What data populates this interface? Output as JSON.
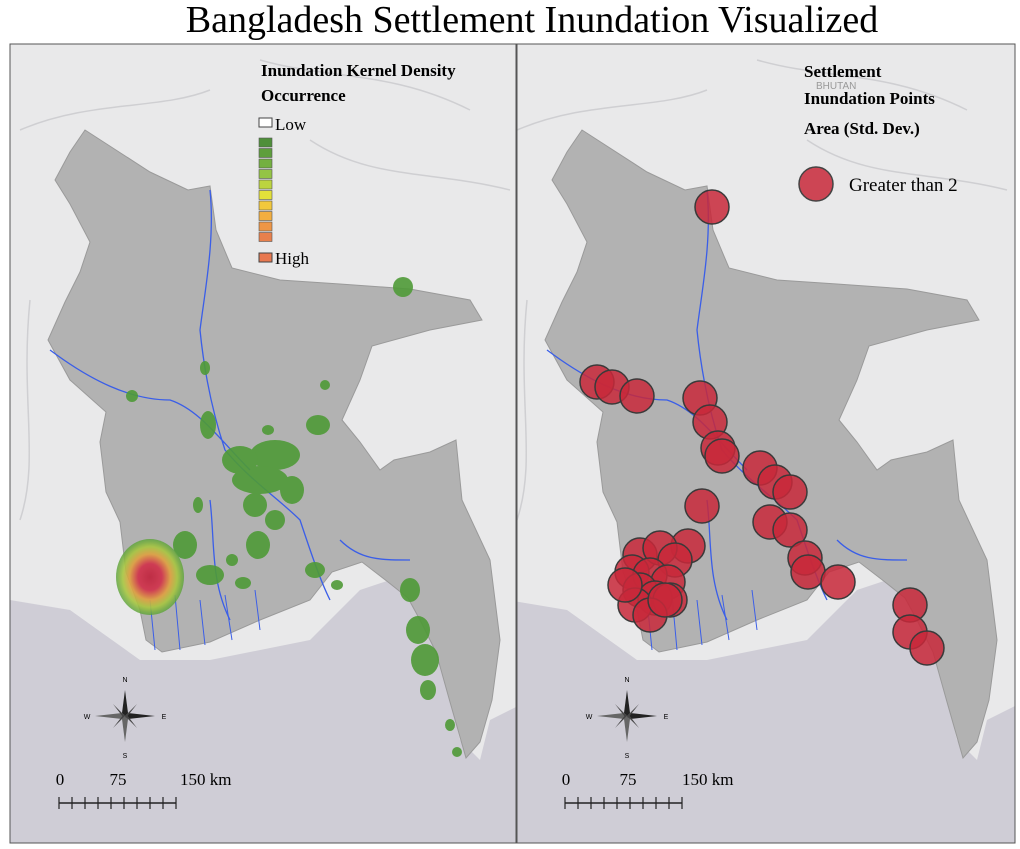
{
  "title": "Bangladesh Settlement Inundation Visualized",
  "left_map": {
    "legend": {
      "title_lines": [
        "Inundation Kernel Density",
        "Occurrence"
      ],
      "low": "Low",
      "high": "High"
    },
    "compass": {
      "n": "N",
      "s": "S",
      "e": "E",
      "w": "W"
    },
    "scale_bar": {
      "labels": [
        "0",
        "75",
        "150 km"
      ]
    }
  },
  "right_map": {
    "legend": {
      "title_lines": [
        "Settlement",
        "Inundation Points",
        "Area (Std. Dev.)"
      ],
      "item": "Greater than 2"
    },
    "place_label": "BHUTAN",
    "compass": {
      "n": "N",
      "s": "S",
      "e": "E",
      "w": "W"
    },
    "scale_bar": {
      "labels": [
        "0",
        "75",
        "150 km"
      ]
    }
  }
}
